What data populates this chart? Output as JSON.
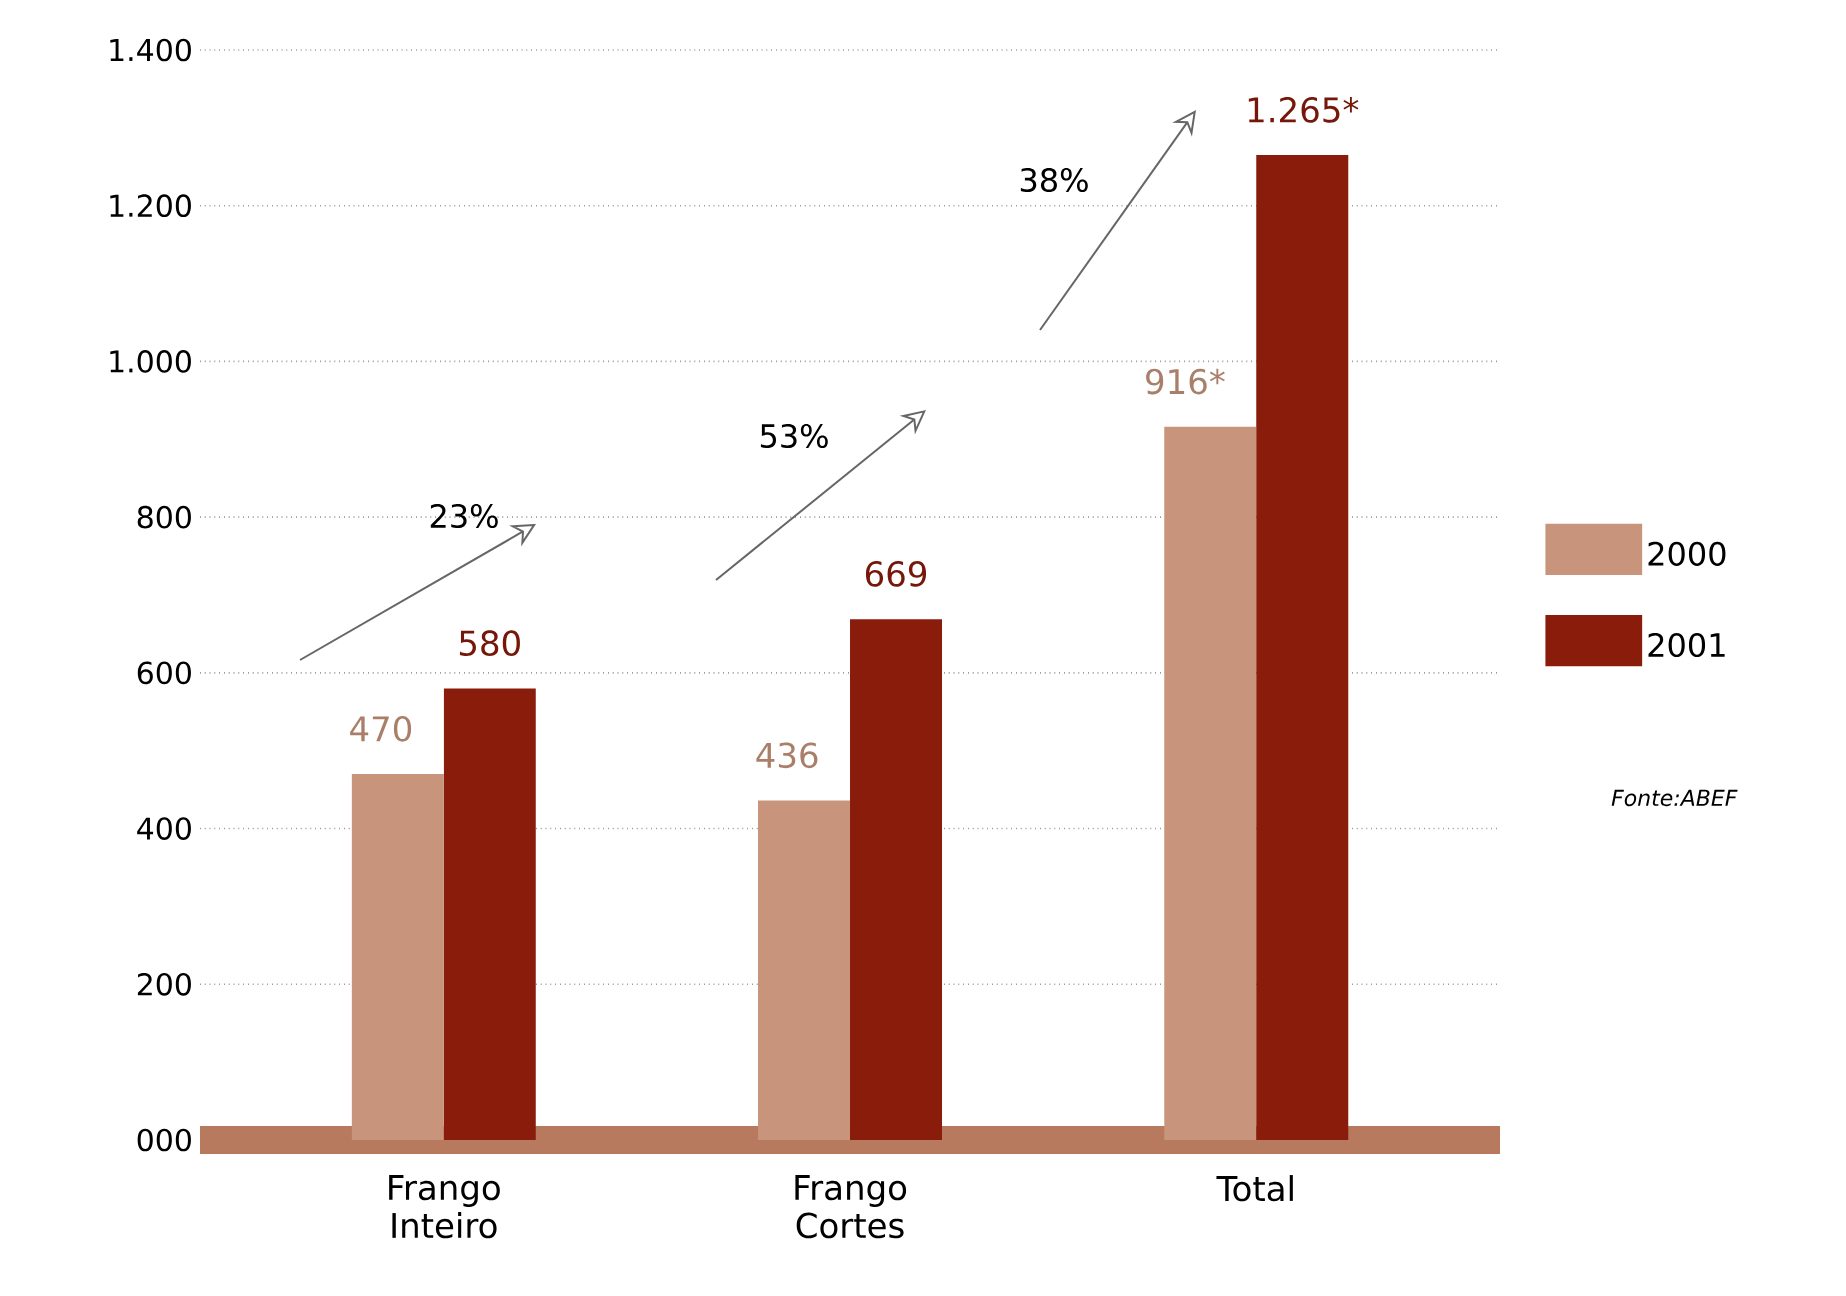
{
  "chart_data": {
    "type": "bar",
    "categories": [
      "Frango Inteiro",
      "Frango Cortes",
      "Total"
    ],
    "series": [
      {
        "name": "2000",
        "color": "#c8957c",
        "values": [
          470,
          436,
          916
        ],
        "value_labels": [
          "470",
          "436",
          "916*"
        ]
      },
      {
        "name": "2001",
        "color": "#8a1c0c",
        "values": [
          580,
          669,
          1265
        ],
        "value_labels": [
          "580",
          "669",
          "1.265*"
        ]
      }
    ],
    "ylim": [
      0,
      1400
    ],
    "yticks": [
      {
        "value": 0,
        "label": "000"
      },
      200,
      400,
      600,
      800,
      {
        "value": 1000,
        "label": "1.000"
      },
      {
        "value": 1200,
        "label": "1.200"
      },
      {
        "value": 1400,
        "label": "1.400"
      }
    ],
    "grid": "y",
    "legend": "right",
    "annotations": [
      "23%",
      "53%",
      "38%",
      "Fonte:ABEF"
    ]
  }
}
